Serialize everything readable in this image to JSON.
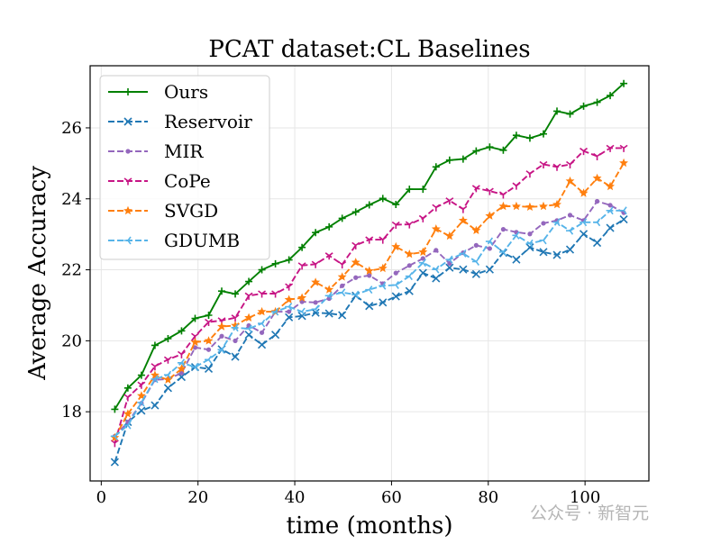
{
  "chart_data": {
    "type": "line",
    "title": "PCAT dataset:CL Baselines",
    "xlabel": "time (months)",
    "ylabel": "Average Accuracy",
    "xlim": [
      -2.3,
      113.2
    ],
    "ylim": [
      16.05,
      27.75
    ],
    "xticks": [
      0,
      20,
      40,
      60,
      80,
      100
    ],
    "yticks": [
      18,
      20,
      22,
      24,
      26
    ],
    "grid": true,
    "legend_position": "upper-left",
    "x": [
      2.8,
      5.5,
      8.3,
      11.1,
      13.8,
      16.6,
      19.4,
      22.2,
      24.9,
      27.7,
      30.5,
      33.2,
      36.0,
      38.8,
      41.5,
      44.3,
      47.1,
      49.8,
      52.6,
      55.4,
      58.2,
      60.9,
      63.7,
      66.5,
      69.2,
      72.0,
      74.8,
      77.5,
      80.3,
      83.1,
      85.8,
      88.6,
      91.4,
      94.2,
      96.9,
      99.7,
      102.5,
      105.2,
      108.0
    ],
    "series": [
      {
        "name": "Ours",
        "color": "#008000",
        "dashed": false,
        "marker": "plus",
        "values": [
          18.07,
          18.67,
          19.03,
          19.87,
          20.06,
          20.28,
          20.63,
          20.72,
          21.4,
          21.32,
          21.67,
          22.0,
          22.17,
          22.28,
          22.63,
          23.05,
          23.21,
          23.45,
          23.63,
          23.83,
          24.01,
          23.84,
          24.27,
          24.27,
          24.9,
          25.09,
          25.12,
          25.35,
          25.46,
          25.37,
          25.79,
          25.71,
          25.83,
          26.47,
          26.39,
          26.61,
          26.72,
          26.91,
          27.25
        ]
      },
      {
        "name": "Reservoir",
        "color": "#1f77b4",
        "dashed": true,
        "marker": "x",
        "values": [
          16.58,
          17.71,
          18.03,
          18.18,
          18.67,
          18.98,
          19.26,
          19.21,
          19.76,
          19.55,
          20.17,
          19.89,
          20.17,
          20.66,
          20.7,
          20.79,
          20.77,
          20.72,
          21.27,
          20.98,
          21.08,
          21.25,
          21.4,
          21.91,
          21.76,
          22.06,
          22.01,
          21.88,
          22.01,
          22.48,
          22.29,
          22.63,
          22.5,
          22.42,
          22.57,
          23.01,
          22.76,
          23.18,
          23.42
        ]
      },
      {
        "name": "MIR",
        "color": "#9467bd",
        "dashed": true,
        "marker": "dot",
        "values": [
          17.31,
          17.71,
          18.24,
          18.9,
          18.92,
          19.09,
          19.81,
          19.75,
          20.13,
          20.0,
          20.43,
          20.23,
          20.82,
          20.82,
          21.1,
          21.08,
          21.19,
          21.55,
          21.78,
          21.84,
          21.61,
          21.91,
          22.12,
          22.32,
          22.55,
          22.18,
          22.48,
          22.69,
          22.6,
          23.14,
          23.06,
          23.01,
          23.31,
          23.39,
          23.54,
          23.39,
          23.93,
          23.82,
          23.61
        ]
      },
      {
        "name": "CoPe",
        "color": "#c71585",
        "dashed": true,
        "marker": "tri",
        "values": [
          17.12,
          18.41,
          18.76,
          19.28,
          19.47,
          19.62,
          20.13,
          20.53,
          20.57,
          20.65,
          21.27,
          21.33,
          21.33,
          21.53,
          22.12,
          22.16,
          22.4,
          22.15,
          22.69,
          22.85,
          22.85,
          23.27,
          23.28,
          23.45,
          23.76,
          23.95,
          23.71,
          24.3,
          24.22,
          24.12,
          24.37,
          24.71,
          24.97,
          24.9,
          24.97,
          25.35,
          25.2,
          25.43,
          25.43
        ]
      },
      {
        "name": "SVGD",
        "color": "#ff7f0e",
        "dashed": true,
        "marker": "star",
        "values": [
          17.27,
          17.94,
          18.45,
          19.03,
          18.9,
          19.21,
          19.96,
          20.0,
          20.4,
          20.43,
          20.65,
          20.82,
          20.82,
          21.16,
          21.21,
          21.65,
          21.44,
          21.8,
          22.21,
          21.97,
          22.04,
          22.65,
          22.44,
          22.5,
          23.15,
          22.95,
          23.39,
          23.11,
          23.52,
          23.79,
          23.79,
          23.77,
          23.79,
          23.84,
          24.5,
          24.16,
          24.58,
          24.35,
          25.01
        ]
      },
      {
        "name": "GDUMB",
        "color": "#56b4e9",
        "dashed": true,
        "marker": "tri-right",
        "values": [
          17.31,
          17.62,
          18.26,
          18.92,
          19.04,
          19.38,
          19.26,
          19.47,
          19.75,
          20.37,
          20.34,
          20.49,
          20.82,
          20.96,
          20.82,
          20.89,
          21.27,
          21.36,
          21.3,
          21.44,
          21.55,
          21.57,
          21.82,
          22.2,
          22.01,
          22.29,
          22.46,
          22.23,
          22.8,
          22.5,
          22.97,
          22.74,
          22.83,
          23.34,
          23.1,
          23.34,
          23.34,
          23.67,
          23.67
        ]
      }
    ]
  },
  "watermark": "公众号 · 新智元"
}
